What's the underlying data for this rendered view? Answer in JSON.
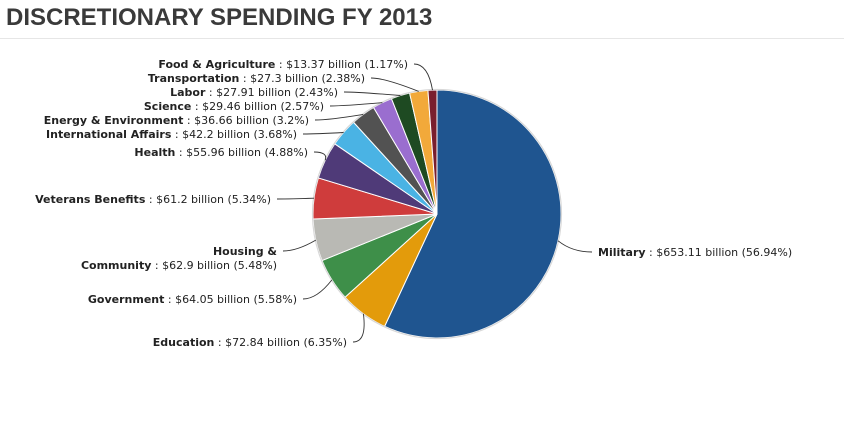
{
  "page": {
    "title": "DISCRETIONARY SPENDING FY 2013"
  },
  "chart_data": {
    "type": "pie",
    "title": "DISCRETIONARY SPENDING FY 2013",
    "slices": [
      {
        "name": "Military",
        "value": 653.11,
        "percent": 56.94,
        "value_label": "$653.11 billion (56.94%)",
        "color": "#1f5590"
      },
      {
        "name": "Education",
        "value": 72.84,
        "percent": 6.35,
        "value_label": "$72.84 billion (6.35%)",
        "color": "#e39b0b"
      },
      {
        "name": "Government",
        "value": 64.05,
        "percent": 5.58,
        "value_label": "$64.05 billion (5.58%)",
        "color": "#3e8f49"
      },
      {
        "name": "Housing & Community",
        "name_lines": [
          "Housing &",
          "Community"
        ],
        "value": 62.9,
        "percent": 5.48,
        "value_label": "$62.9 billion (5.48%)",
        "color": "#b9b9b4"
      },
      {
        "name": "Veterans Benefits",
        "value": 61.2,
        "percent": 5.34,
        "value_label": "$61.2 billion (5.34%)",
        "color": "#cf3c3c"
      },
      {
        "name": "Health",
        "value": 55.96,
        "percent": 4.88,
        "value_label": "$55.96 billion (4.88%)",
        "color": "#4f3a78"
      },
      {
        "name": "International Affairs",
        "value": 42.2,
        "percent": 3.68,
        "value_label": "$42.2 billion (3.68%)",
        "color": "#4ab3e4"
      },
      {
        "name": "Energy & Environment",
        "value": 36.66,
        "percent": 3.2,
        "value_label": "$36.66 billion (3.2%)",
        "color": "#525252"
      },
      {
        "name": "Science",
        "value": 29.46,
        "percent": 2.57,
        "value_label": "$29.46 billion (2.57%)",
        "color": "#9a6ecf"
      },
      {
        "name": "Labor",
        "value": 27.91,
        "percent": 2.43,
        "value_label": "$27.91 billion (2.43%)",
        "color": "#1e4a22"
      },
      {
        "name": "Transportation",
        "value": 27.3,
        "percent": 2.38,
        "value_label": "$27.3 billion (2.38%)",
        "color": "#f2a93a"
      },
      {
        "name": "Food & Agriculture",
        "value": 13.37,
        "percent": 1.17,
        "value_label": "$13.37 billion (1.17%)",
        "color": "#7a1f2e"
      }
    ]
  }
}
